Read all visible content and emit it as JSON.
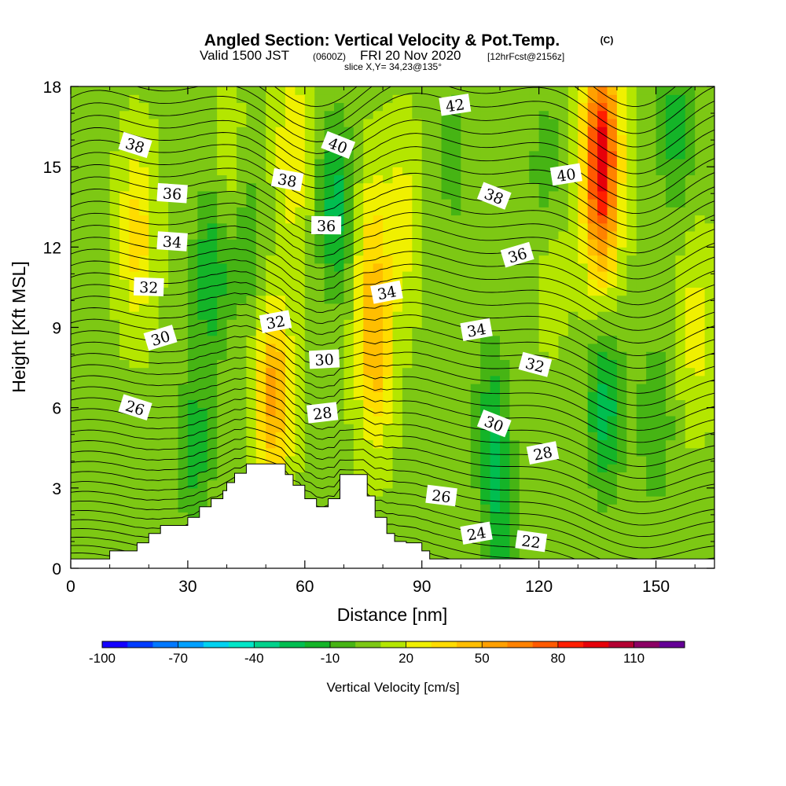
{
  "figure": {
    "title": "Angled Section: Vertical Velocity & Pot.Temp.",
    "title_mark": "(C)",
    "subtitle_a": "Valid 1500 JST",
    "subtitle_b": "(0600Z)",
    "subtitle_c": "FRI 20 Nov 2020",
    "subtitle_d": "[12hrFcst@2156z]",
    "slice_note": "slice X,Y= 34,23@135°"
  },
  "chart_data": {
    "type": "heatmap",
    "title": "Angled Section: Vertical Velocity & Pot.Temp.",
    "xlabel": "Distance [nm]",
    "ylabel": "Height [Kft MSL]",
    "xlim": [
      0,
      165
    ],
    "ylim": [
      0,
      18
    ],
    "x_ticks": [
      0,
      30,
      60,
      90,
      120,
      150
    ],
    "y_ticks": [
      0,
      3,
      6,
      9,
      12,
      15,
      18
    ],
    "x_tick_labels": [
      "0",
      "30",
      "60",
      "90",
      "120",
      "150"
    ],
    "y_tick_labels": [
      "0",
      "3",
      "6",
      "9",
      "12",
      "15",
      "18"
    ],
    "shaded_field": "Vertical Velocity [cm/s]",
    "contour_field": "Pot.Temp. (C)",
    "colorbar": {
      "label": "Vertical Velocity [cm/s]",
      "min": -100,
      "max": 130,
      "step": 10,
      "tick_values": [
        -100,
        -70,
        -40,
        -10,
        20,
        50,
        80,
        110
      ],
      "tick_labels": [
        "-100",
        "-70",
        "-40",
        "-10",
        "20",
        "50",
        "80",
        "110"
      ],
      "colors": [
        "#1400ff",
        "#003cff",
        "#0078ff",
        "#00a0ff",
        "#00d2f0",
        "#00e6c8",
        "#00d28c",
        "#00be50",
        "#14b428",
        "#46b414",
        "#7dc814",
        "#b4e600",
        "#f0f000",
        "#ffdc00",
        "#ffbe00",
        "#ffa000",
        "#ff8200",
        "#ff5a00",
        "#ff1e00",
        "#e6000a",
        "#b40032",
        "#8c0064",
        "#640096"
      ]
    },
    "velocity_features": [
      {
        "x": 17,
        "y": 12.5,
        "value": 35
      },
      {
        "x": 36,
        "y": 11,
        "value": -20
      },
      {
        "x": 32,
        "y": 4.5,
        "value": -15
      },
      {
        "x": 41,
        "y": 14.5,
        "value": 20
      },
      {
        "x": 45,
        "y": 12.5,
        "value": -10
      },
      {
        "x": 52,
        "y": 6.5,
        "value": 55
      },
      {
        "x": 57,
        "y": 15.5,
        "value": 30
      },
      {
        "x": 68,
        "y": 13.5,
        "value": -25
      },
      {
        "x": 77,
        "y": 12,
        "value": 30
      },
      {
        "x": 78,
        "y": 8,
        "value": 45
      },
      {
        "x": 85,
        "y": 13,
        "value": 25
      },
      {
        "x": 98,
        "y": 15.5,
        "value": -5
      },
      {
        "x": 108,
        "y": 5.5,
        "value": -15
      },
      {
        "x": 110,
        "y": 1.5,
        "value": -15
      },
      {
        "x": 122,
        "y": 14.5,
        "value": -10
      },
      {
        "x": 123,
        "y": 12,
        "value": 20
      },
      {
        "x": 136,
        "y": 16,
        "value": 80
      },
      {
        "x": 136,
        "y": 13,
        "value": 45
      },
      {
        "x": 137,
        "y": 6,
        "value": -25
      },
      {
        "x": 150,
        "y": 5.5,
        "value": -10
      },
      {
        "x": 155,
        "y": 16.5,
        "value": -15
      },
      {
        "x": 160,
        "y": 9,
        "value": 25
      }
    ],
    "theta_contours": {
      "interval": 1,
      "levels_min": 20,
      "levels_max": 43,
      "labels": [
        {
          "text": "38",
          "x": 16.5,
          "y": 15.8
        },
        {
          "text": "36",
          "x": 26,
          "y": 14
        },
        {
          "text": "34",
          "x": 26,
          "y": 12.2
        },
        {
          "text": "32",
          "x": 20,
          "y": 10.5
        },
        {
          "text": "30",
          "x": 23,
          "y": 8.6
        },
        {
          "text": "26",
          "x": 16.5,
          "y": 6.0
        },
        {
          "text": "38",
          "x": 55.5,
          "y": 14.5
        },
        {
          "text": "40",
          "x": 68.5,
          "y": 15.8
        },
        {
          "text": "36",
          "x": 65.5,
          "y": 12.8
        },
        {
          "text": "32",
          "x": 52.5,
          "y": 9.2
        },
        {
          "text": "34",
          "x": 81,
          "y": 10.3
        },
        {
          "text": "30",
          "x": 65,
          "y": 7.8
        },
        {
          "text": "28",
          "x": 64.5,
          "y": 5.8
        },
        {
          "text": "42",
          "x": 98.5,
          "y": 17.3
        },
        {
          "text": "38",
          "x": 108.5,
          "y": 13.9
        },
        {
          "text": "40",
          "x": 127,
          "y": 14.7
        },
        {
          "text": "36",
          "x": 114.5,
          "y": 11.7
        },
        {
          "text": "34",
          "x": 104,
          "y": 8.9
        },
        {
          "text": "32",
          "x": 119,
          "y": 7.6
        },
        {
          "text": "30",
          "x": 108.5,
          "y": 5.4
        },
        {
          "text": "28",
          "x": 121,
          "y": 4.3
        },
        {
          "text": "26",
          "x": 95,
          "y": 2.7
        },
        {
          "text": "24",
          "x": 104,
          "y": 1.3
        },
        {
          "text": "22",
          "x": 118,
          "y": 1.0
        }
      ]
    },
    "terrain_steps": [
      [
        0,
        0.35
      ],
      [
        10,
        0.65
      ],
      [
        17,
        0.95
      ],
      [
        20,
        1.3
      ],
      [
        23,
        1.6
      ],
      [
        30,
        1.9
      ],
      [
        33,
        2.3
      ],
      [
        36,
        2.6
      ],
      [
        39,
        2.9
      ],
      [
        40,
        3.2
      ],
      [
        42,
        3.55
      ],
      [
        45,
        3.9
      ],
      [
        52,
        3.9
      ],
      [
        55,
        3.5
      ],
      [
        57,
        3.1
      ],
      [
        60,
        2.6
      ],
      [
        63,
        2.3
      ],
      [
        66,
        2.6
      ],
      [
        69,
        3.5
      ],
      [
        74,
        3.5
      ],
      [
        76,
        2.7
      ],
      [
        78,
        1.9
      ],
      [
        81,
        1.3
      ],
      [
        83,
        1.0
      ],
      [
        86,
        0.95
      ],
      [
        90,
        0.65
      ],
      [
        92,
        0.35
      ],
      [
        165,
        0.35
      ]
    ]
  }
}
